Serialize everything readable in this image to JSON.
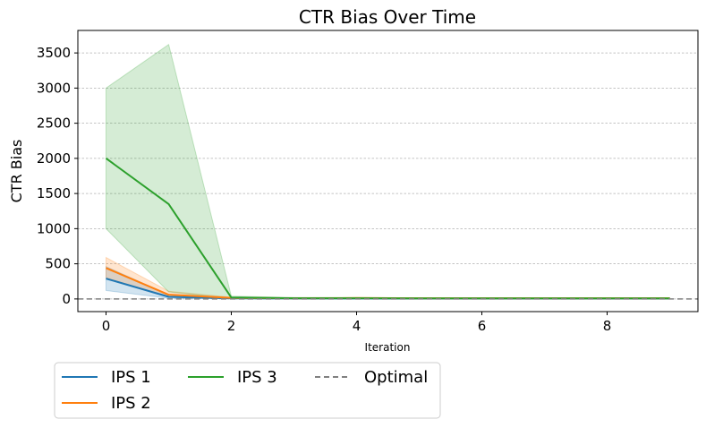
{
  "chart_data": {
    "type": "line",
    "title": "CTR Bias Over Time",
    "xlabel": "Iteration",
    "ylabel": "CTR Bias",
    "xlim": [
      -0.45,
      9.45
    ],
    "ylim": [
      -180,
      3820
    ],
    "xticks": [
      0,
      2,
      4,
      6,
      8
    ],
    "yticks": [
      0,
      500,
      1000,
      1500,
      2000,
      2500,
      3000,
      3500
    ],
    "grid": "y-dashed",
    "legend_position": "bottom-left, outside",
    "x": [
      0,
      1,
      2,
      3,
      4,
      5,
      6,
      7,
      8,
      9
    ],
    "series": [
      {
        "name": "IPS 1",
        "color": "#1f77b4",
        "style": "solid",
        "values": [
          290,
          30,
          8,
          6,
          6,
          5,
          5,
          5,
          5,
          5
        ],
        "band_low": [
          120,
          10,
          3,
          2,
          2,
          2,
          2,
          2,
          2,
          2
        ],
        "band_high": [
          460,
          60,
          15,
          10,
          10,
          9,
          9,
          9,
          9,
          9
        ]
      },
      {
        "name": "IPS 2",
        "color": "#ff7f0e",
        "style": "solid",
        "values": [
          440,
          60,
          15,
          10,
          12,
          10,
          10,
          10,
          10,
          10
        ],
        "band_low": [
          300,
          30,
          5,
          4,
          5,
          4,
          4,
          4,
          4,
          4
        ],
        "band_high": [
          590,
          110,
          25,
          18,
          20,
          16,
          16,
          16,
          16,
          16
        ]
      },
      {
        "name": "IPS 3",
        "color": "#2ca02c",
        "style": "solid",
        "values": [
          2000,
          1350,
          20,
          10,
          10,
          8,
          8,
          8,
          8,
          8
        ],
        "band_low": [
          1000,
          100,
          5,
          3,
          3,
          3,
          3,
          3,
          3,
          3
        ],
        "band_high": [
          3000,
          3620,
          40,
          20,
          20,
          16,
          16,
          16,
          16,
          16
        ]
      },
      {
        "name": "Optimal",
        "color": "#808080",
        "style": "dashed",
        "hline": 0
      }
    ]
  }
}
